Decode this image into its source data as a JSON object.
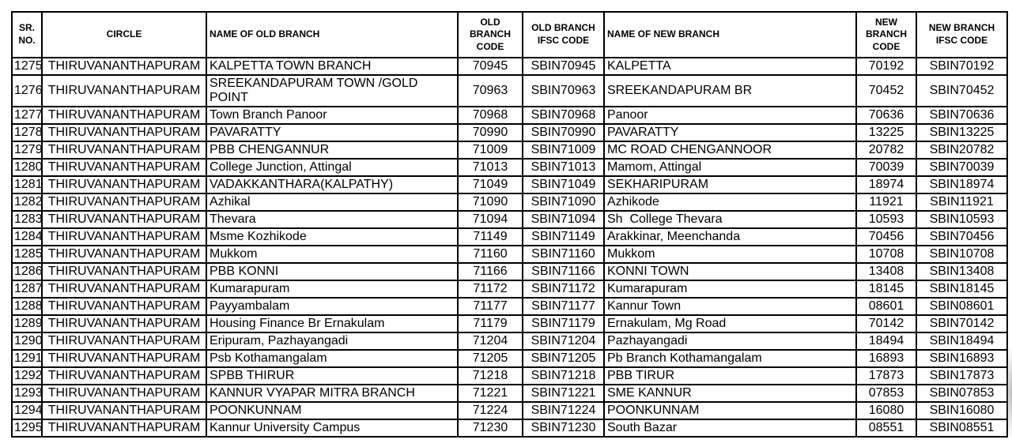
{
  "colors": {
    "border": "#000000",
    "text": "#000000",
    "background": "#ffffff"
  },
  "table": {
    "columns": [
      {
        "key": "sr_no",
        "label": "SR. NO.",
        "align": "center"
      },
      {
        "key": "circle",
        "label": "CIRCLE",
        "align": "center"
      },
      {
        "key": "old_branch_name",
        "label": "NAME OF OLD BRANCH",
        "align": "left"
      },
      {
        "key": "old_branch_code",
        "label": "OLD BRANCH CODE",
        "align": "center"
      },
      {
        "key": "old_branch_ifsc",
        "label": "OLD BRANCH IFSC CODE",
        "align": "center"
      },
      {
        "key": "new_branch_name",
        "label": "NAME OF NEW BRANCH",
        "align": "left"
      },
      {
        "key": "new_branch_code",
        "label": "NEW BRANCH CODE",
        "align": "center"
      },
      {
        "key": "new_branch_ifsc",
        "label": "NEW BRANCH IFSC CODE",
        "align": "center"
      }
    ],
    "rows": [
      [
        "1275",
        "THIRUVANANTHAPURAM",
        "KALPETTA TOWN BRANCH",
        "70945",
        "SBIN70945",
        "KALPETTA",
        "70192",
        "SBIN70192"
      ],
      [
        "1276",
        "THIRUVANANTHAPURAM",
        "SREEKANDAPURAM TOWN /GOLD POINT",
        "70963",
        "SBIN70963",
        "SREEKANDAPURAM BR",
        "70452",
        "SBIN70452"
      ],
      [
        "1277",
        "THIRUVANANTHAPURAM",
        "Town Branch Panoor",
        "70968",
        "SBIN70968",
        "Panoor",
        "70636",
        "SBIN70636"
      ],
      [
        "1278",
        "THIRUVANANTHAPURAM",
        "PAVARATTY",
        "70990",
        "SBIN70990",
        "PAVARATTY",
        "13225",
        "SBIN13225"
      ],
      [
        "1279",
        "THIRUVANANTHAPURAM",
        "PBB CHENGANNUR",
        "71009",
        "SBIN71009",
        "MC ROAD CHENGANNOOR",
        "20782",
        "SBIN20782"
      ],
      [
        "1280",
        "THIRUVANANTHAPURAM",
        "College Junction, Attingal",
        "71013",
        "SBIN71013",
        "Mamom, Attingal",
        "70039",
        "SBIN70039"
      ],
      [
        "1281",
        "THIRUVANANTHAPURAM",
        "VADAKKANTHARA(KALPATHY)",
        "71049",
        "SBIN71049",
        "SEKHARIPURAM",
        "18974",
        "SBIN18974"
      ],
      [
        "1282",
        "THIRUVANANTHAPURAM",
        "Azhikal",
        "71090",
        "SBIN71090",
        "Azhikode",
        "11921",
        "SBIN11921"
      ],
      [
        "1283",
        "THIRUVANANTHAPURAM",
        "Thevara",
        "71094",
        "SBIN71094",
        "Sh  College Thevara",
        "10593",
        "SBIN10593"
      ],
      [
        "1284",
        "THIRUVANANTHAPURAM",
        "Msme Kozhikode",
        "71149",
        "SBIN71149",
        "Arakkinar, Meenchanda",
        "70456",
        "SBIN70456"
      ],
      [
        "1285",
        "THIRUVANANTHAPURAM",
        "Mukkom",
        "71160",
        "SBIN71160",
        "Mukkom",
        "10708",
        "SBIN10708"
      ],
      [
        "1286",
        "THIRUVANANTHAPURAM",
        "PBB KONNI",
        "71166",
        "SBIN71166",
        "KONNI TOWN",
        "13408",
        "SBIN13408"
      ],
      [
        "1287",
        "THIRUVANANTHAPURAM",
        "Kumarapuram",
        "71172",
        "SBIN71172",
        "Kumarapuram",
        "18145",
        "SBIN18145"
      ],
      [
        "1288",
        "THIRUVANANTHAPURAM",
        "Payyambalam",
        "71177",
        "SBIN71177",
        "Kannur Town",
        "08601",
        "SBIN08601"
      ],
      [
        "1289",
        "THIRUVANANTHAPURAM",
        "Housing Finance Br Ernakulam",
        "71179",
        "SBIN71179",
        "Ernakulam, Mg Road",
        "70142",
        "SBIN70142"
      ],
      [
        "1290",
        "THIRUVANANTHAPURAM",
        "Eripuram, Pazhayangadi",
        "71204",
        "SBIN71204",
        "Pazhayangadi",
        "18494",
        "SBIN18494"
      ],
      [
        "1291",
        "THIRUVANANTHAPURAM",
        "Psb Kothamangalam",
        "71205",
        "SBIN71205",
        "Pb Branch Kothamangalam",
        "16893",
        "SBIN16893"
      ],
      [
        "1292",
        "THIRUVANANTHAPURAM",
        "SPBB THIRUR",
        "71218",
        "SBIN71218",
        "PBB TIRUR",
        "17873",
        "SBIN17873"
      ],
      [
        "1293",
        "THIRUVANANTHAPURAM",
        "KANNUR VYAPAR MITRA BRANCH",
        "71221",
        "SBIN71221",
        "SME KANNUR",
        "07853",
        "SBIN07853"
      ],
      [
        "1294",
        "THIRUVANANTHAPURAM",
        "POONKUNNAM",
        "71224",
        "SBIN71224",
        "POONKUNNAM",
        "16080",
        "SBIN16080"
      ],
      [
        "1295",
        "THIRUVANANTHAPURAM",
        "Kannur University Campus",
        "71230",
        "SBIN71230",
        "South Bazar",
        "08551",
        "SBIN08551"
      ]
    ]
  }
}
